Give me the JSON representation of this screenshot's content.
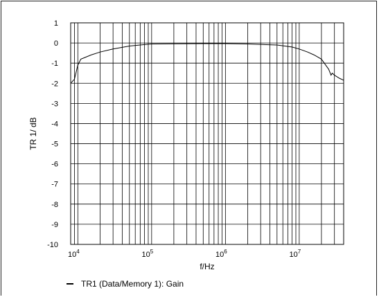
{
  "chart_data": {
    "type": "line",
    "x_scale": "log",
    "xlim": [
      8000,
      40000000
    ],
    "ylim": [
      -10,
      1
    ],
    "xlabel": "f/Hz",
    "ylabel": "TR 1/ dB",
    "x_ticks": [
      {
        "value": 10000,
        "base": "10",
        "exp": "4"
      },
      {
        "value": 100000,
        "base": "10",
        "exp": "5"
      },
      {
        "value": 1000000,
        "base": "10",
        "exp": "6"
      },
      {
        "value": 10000000,
        "base": "10",
        "exp": "7"
      }
    ],
    "y_ticks": [
      "1",
      "0",
      "-1",
      "-2",
      "-3",
      "-4",
      "-5",
      "-6",
      "-7",
      "-8",
      "-9",
      "-10"
    ],
    "grid": true,
    "legend_position": "bottom-left",
    "series": [
      {
        "name": "TR1 (Data/Memory 1): Gain",
        "color": "#000000",
        "x": [
          8000,
          9000,
          10000,
          11000,
          12500,
          15000,
          20000,
          30000,
          50000,
          80000,
          100000,
          200000,
          500000,
          1000000,
          2000000,
          5000000,
          8000000,
          10000000,
          13000000,
          16000000,
          20000000,
          25000000,
          27000000,
          28000000,
          30000000,
          35000000,
          40000000
        ],
        "y": [
          -2.0,
          -1.8,
          -1.1,
          -0.8,
          -0.72,
          -0.6,
          -0.45,
          -0.3,
          -0.15,
          -0.08,
          -0.05,
          -0.04,
          -0.03,
          -0.03,
          -0.05,
          -0.1,
          -0.2,
          -0.3,
          -0.45,
          -0.6,
          -0.8,
          -1.3,
          -1.6,
          -1.5,
          -1.6,
          -1.75,
          -1.85
        ]
      }
    ]
  }
}
